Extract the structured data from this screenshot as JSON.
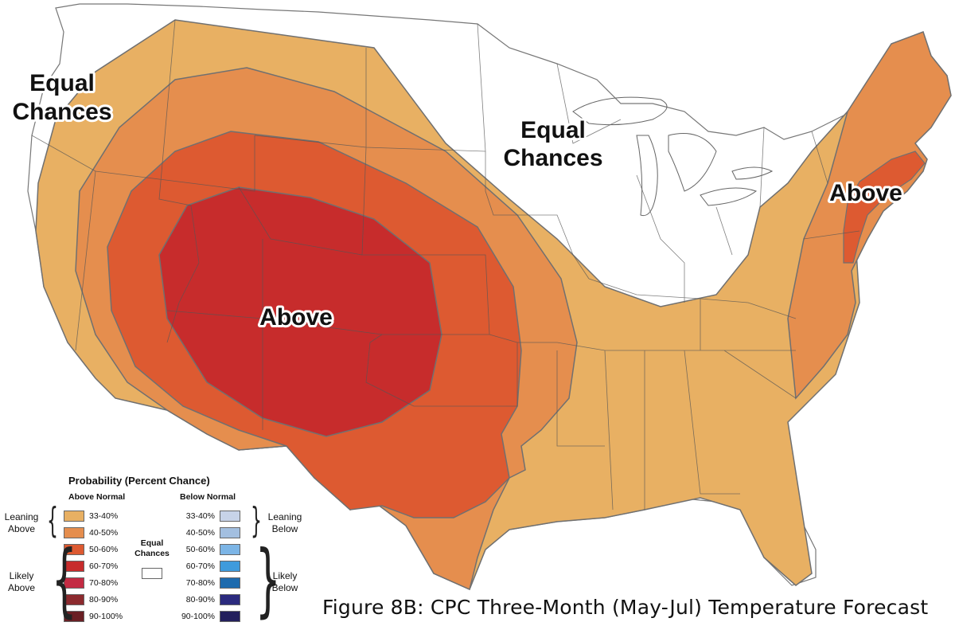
{
  "map_labels": {
    "equal_chances_west": [
      "Equal",
      "Chances"
    ],
    "equal_chances_central": [
      "Equal",
      "Chances"
    ],
    "above_central": "Above",
    "above_northeast": "Above"
  },
  "legend": {
    "title": "Probability (Percent Chance)",
    "above_header": "Above Normal",
    "below_header": "Below Normal",
    "equal_chances": [
      "Equal",
      "Chances"
    ],
    "leaning_above": [
      "Leaning",
      "Above"
    ],
    "likely_above": [
      "Likely",
      "Above"
    ],
    "leaning_below": [
      "Leaning",
      "Below"
    ],
    "likely_below": [
      "Likely",
      "Below"
    ],
    "above_items": [
      {
        "label": "33-40%",
        "color": "#E8B063"
      },
      {
        "label": "40-50%",
        "color": "#E58E4E"
      },
      {
        "label": "50-60%",
        "color": "#DD5A31"
      },
      {
        "label": "60-70%",
        "color": "#C72C2C"
      },
      {
        "label": "70-80%",
        "color": "#C32B43"
      },
      {
        "label": "80-90%",
        "color": "#8C2A2E"
      },
      {
        "label": "90-100%",
        "color": "#6A1F24"
      }
    ],
    "below_items": [
      {
        "label": "33-40%",
        "color": "#C7D3E8"
      },
      {
        "label": "40-50%",
        "color": "#A3BFE0"
      },
      {
        "label": "50-60%",
        "color": "#7CB5E6"
      },
      {
        "label": "60-70%",
        "color": "#3F9BDC"
      },
      {
        "label": "70-80%",
        "color": "#1D6BAE"
      },
      {
        "label": "80-90%",
        "color": "#2B2A7E"
      },
      {
        "label": "90-100%",
        "color": "#231F5C"
      }
    ]
  },
  "figure_title": "Figure 8B: CPC Three-Month (May-Jul) Temperature Forecast"
}
